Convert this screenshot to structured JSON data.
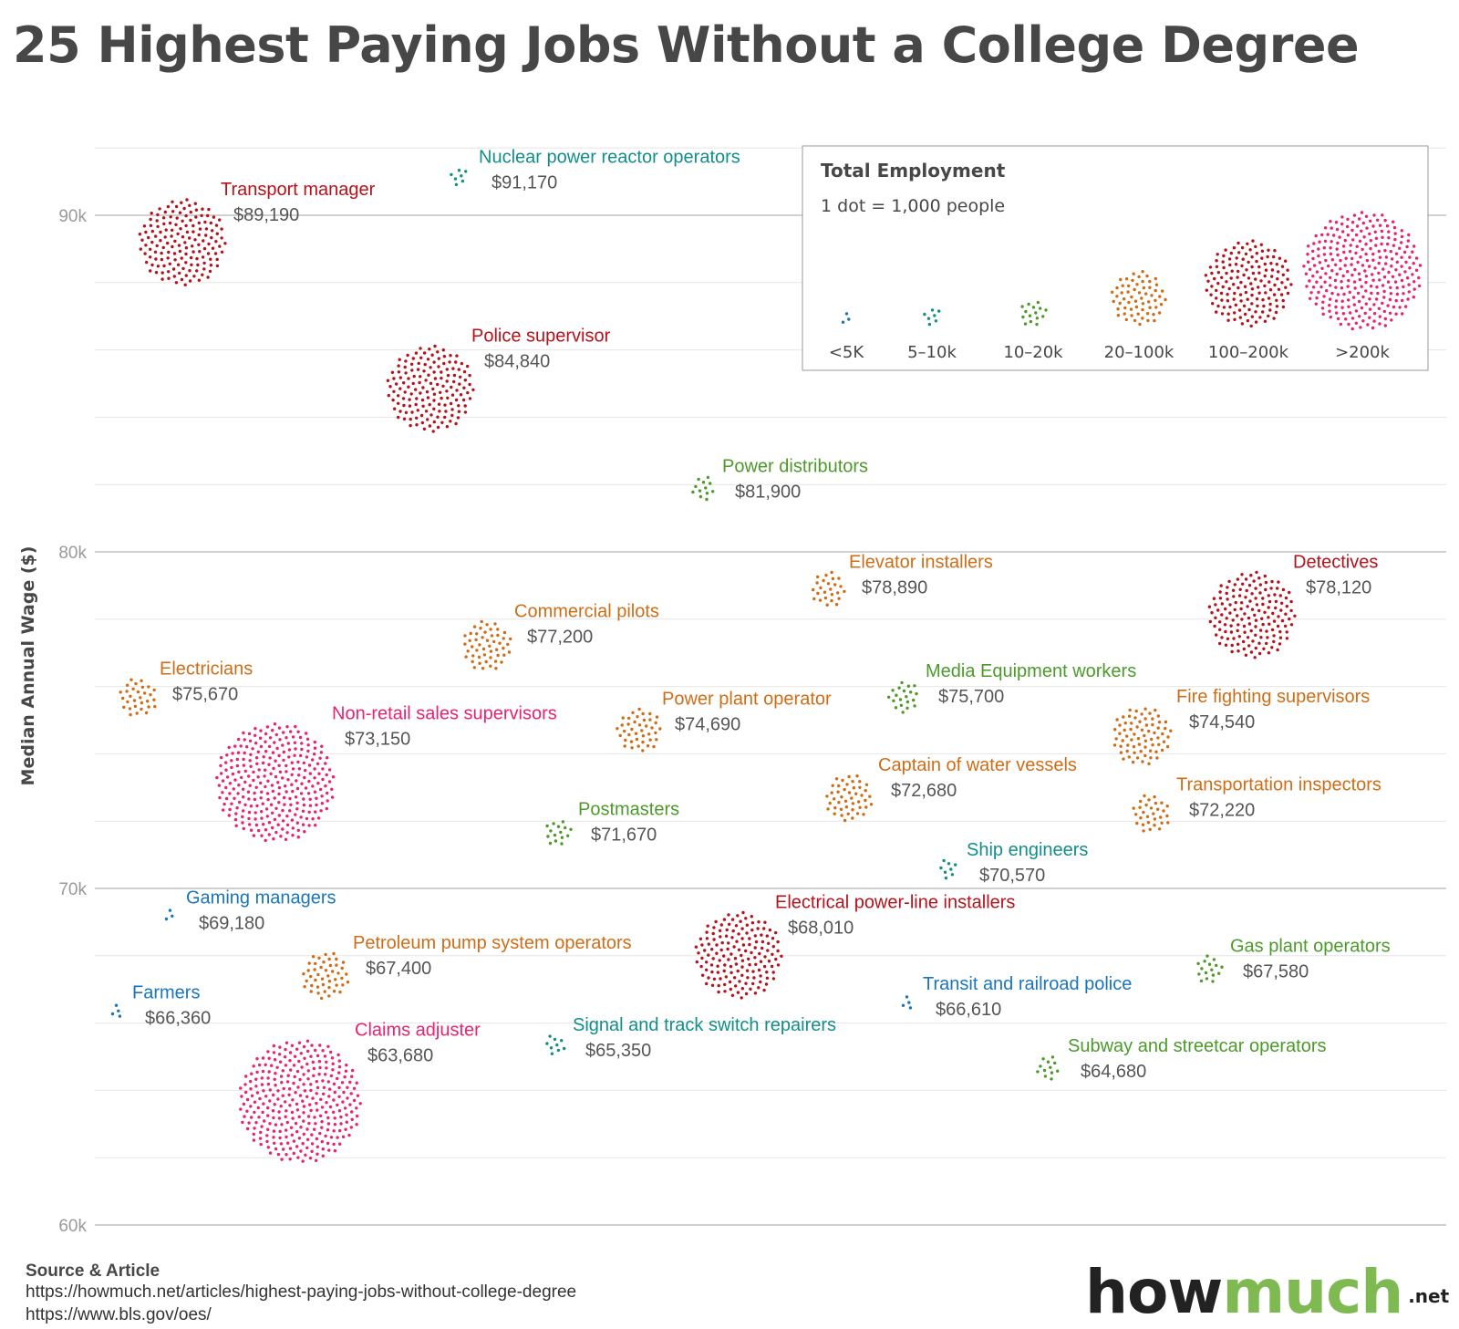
{
  "title": "25 Highest Paying Jobs Without a College Degree",
  "footer": {
    "title": "Source & Article",
    "sources": [
      "https://howmuch.net/articles/highest-paying-jobs-without-college-degree",
      "https://www.bls.gov/oes/"
    ]
  },
  "logo": {
    "part1": "how",
    "part2": "much",
    "suffix": ".net"
  },
  "legend": {
    "title": "Total Employment",
    "subtitle": "1 dot = 1,000 people",
    "placement": "top-right",
    "items": [
      {
        "label": "<5K",
        "color": "#1a75bb",
        "dots": 3
      },
      {
        "label": "5–10k",
        "color": "#128e8a",
        "dots": 7
      },
      {
        "label": "10–20k",
        "color": "#4c9a2a",
        "dots": 15
      },
      {
        "label": "20–100k",
        "color": "#cf6d17",
        "dots": 60
      },
      {
        "label": "100–200k",
        "color": "#b5121b",
        "dots": 150
      },
      {
        "label": ">200k",
        "color": "#e8236f",
        "dots": 280
      }
    ]
  },
  "chart_data": {
    "type": "scatter",
    "title": "25 Highest Paying Jobs Without a College Degree",
    "ylabel": "Median Annual Wage ($)",
    "xlabel": "",
    "ylim": [
      60000,
      92000
    ],
    "y_ticks": [
      {
        "value": 60000,
        "label": "60k"
      },
      {
        "value": 70000,
        "label": "70k"
      },
      {
        "value": 80000,
        "label": "80k"
      },
      {
        "value": 90000,
        "label": "90k"
      }
    ],
    "grid": true,
    "points": [
      {
        "name": "Nuclear power reactor operators",
        "wage_label": "$91,170",
        "wage": 91170,
        "category": "5–10k",
        "color": "#128e8a",
        "dots": 7
      },
      {
        "name": "Transport manager",
        "wage_label": "$89,190",
        "wage": 89190,
        "category": "100–200k",
        "color": "#b5121b",
        "dots": 150
      },
      {
        "name": "Police supervisor",
        "wage_label": "$84,840",
        "wage": 84840,
        "category": "100–200k",
        "color": "#b5121b",
        "dots": 150
      },
      {
        "name": "Power distributors",
        "wage_label": "$81,900",
        "wage": 81900,
        "category": "10–20k",
        "color": "#4c9a2a",
        "dots": 12
      },
      {
        "name": "Elevator installers",
        "wage_label": "$78,890",
        "wage": 78890,
        "category": "20–100k",
        "color": "#cf6d17",
        "dots": 25
      },
      {
        "name": "Detectives",
        "wage_label": "$78,120",
        "wage": 78120,
        "category": "100–200k",
        "color": "#b5121b",
        "dots": 150
      },
      {
        "name": "Commercial pilots",
        "wage_label": "$77,200",
        "wage": 77200,
        "category": "20–100k",
        "color": "#cf6d17",
        "dots": 50
      },
      {
        "name": "Electricians",
        "wage_label": "$75,670",
        "wage": 75670,
        "category": "20–100k",
        "color": "#cf6d17",
        "dots": 30
      },
      {
        "name": "Media Equipment workers",
        "wage_label": "$75,700",
        "wage": 75700,
        "category": "10–20k",
        "color": "#4c9a2a",
        "dots": 20
      },
      {
        "name": "Power plant operator",
        "wage_label": "$74,690",
        "wage": 74690,
        "category": "20–100k",
        "color": "#cf6d17",
        "dots": 40
      },
      {
        "name": "Fire fighting supervisors",
        "wage_label": "$74,540",
        "wage": 74540,
        "category": "20–100k",
        "color": "#cf6d17",
        "dots": 70
      },
      {
        "name": "Non-retail sales supervisors",
        "wage_label": "$73,150",
        "wage": 73150,
        "category": ">200k",
        "color": "#e8236f",
        "dots": 280
      },
      {
        "name": "Captain of water vessels",
        "wage_label": "$72,680",
        "wage": 72680,
        "category": "20–100k",
        "color": "#cf6d17",
        "dots": 45
      },
      {
        "name": "Transportation inspectors",
        "wage_label": "$72,220",
        "wage": 72220,
        "category": "20–100k",
        "color": "#cf6d17",
        "dots": 30
      },
      {
        "name": "Postmasters",
        "wage_label": "$71,670",
        "wage": 71670,
        "category": "10–20k",
        "color": "#4c9a2a",
        "dots": 15
      },
      {
        "name": "Ship engineers",
        "wage_label": "$70,570",
        "wage": 70570,
        "category": "5–10k",
        "color": "#128e8a",
        "dots": 8
      },
      {
        "name": "Gaming managers",
        "wage_label": "$69,180",
        "wage": 69180,
        "category": "<5K",
        "color": "#1a75bb",
        "dots": 3
      },
      {
        "name": "Electrical power-line installers",
        "wage_label": "$68,010",
        "wage": 68010,
        "category": "100–200k",
        "color": "#b5121b",
        "dots": 150
      },
      {
        "name": "Petroleum pump system operators",
        "wage_label": "$67,400",
        "wage": 67400,
        "category": "20–100k",
        "color": "#cf6d17",
        "dots": 45
      },
      {
        "name": "Gas plant operators",
        "wage_label": "$67,580",
        "wage": 67580,
        "category": "10–20k",
        "color": "#4c9a2a",
        "dots": 16
      },
      {
        "name": "Farmers",
        "wage_label": "$66,360",
        "wage": 66360,
        "category": "<5K",
        "color": "#1a75bb",
        "dots": 4
      },
      {
        "name": "Transit and railroad police",
        "wage_label": "$66,610",
        "wage": 66610,
        "category": "<5K",
        "color": "#1a75bb",
        "dots": 4
      },
      {
        "name": "Signal and track switch repairers",
        "wage_label": "$65,350",
        "wage": 65350,
        "category": "5–10k",
        "color": "#128e8a",
        "dots": 9
      },
      {
        "name": "Subway and streetcar operators",
        "wage_label": "$64,680",
        "wage": 64680,
        "category": "10–20k",
        "color": "#4c9a2a",
        "dots": 12
      },
      {
        "name": "Claims adjuster",
        "wage_label": "$63,680",
        "wage": 63680,
        "category": ">200k",
        "color": "#e8236f",
        "dots": 300
      }
    ]
  }
}
